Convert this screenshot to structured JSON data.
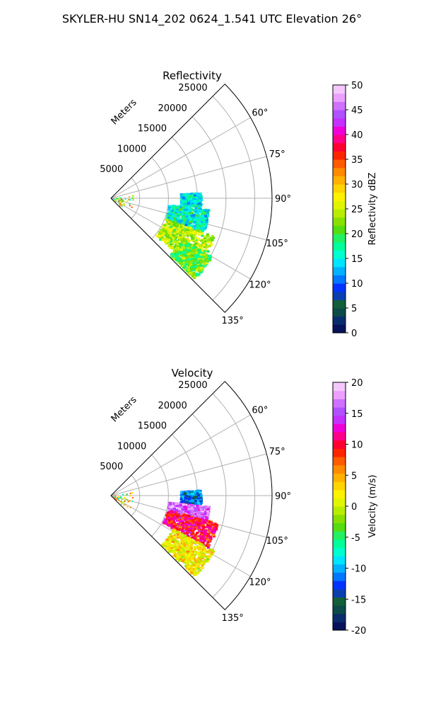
{
  "figure_title": "SKYLER-HU  SN14_202  0624_1.541 UTC Elevation 26°",
  "chart_data": [
    {
      "type": "polar-sector",
      "title": "Reflectivity",
      "radial_axis_label": "Meters",
      "radial_ticks": [
        "5000",
        "10000",
        "15000",
        "20000",
        "25000"
      ],
      "radial_tick_values": [
        5000,
        10000,
        15000,
        20000,
        25000
      ],
      "rlim": [
        0,
        28000
      ],
      "theta_range_deg": [
        45,
        135
      ],
      "angle_ticks": [
        "60°",
        "75°",
        "90°",
        "105°",
        "120°",
        "135°"
      ],
      "angle_tick_values": [
        60,
        75,
        90,
        105,
        120,
        135
      ],
      "grid": true,
      "colorbar": {
        "label": "Reflectivity dBZ",
        "ticks": [
          "0",
          "5",
          "10",
          "15",
          "20",
          "25",
          "30",
          "35",
          "40",
          "45",
          "50"
        ],
        "range": [
          0,
          50
        ],
        "colors": [
          "#06135a",
          "#0a2b6d",
          "#0d4a4a",
          "#125f3a",
          "#0b3fb0",
          "#0033ff",
          "#0077ff",
          "#00b2ff",
          "#00e5ff",
          "#00ffd0",
          "#00ff9a",
          "#22f060",
          "#55dd10",
          "#88e000",
          "#b9ed00",
          "#e2f500",
          "#fff200",
          "#ffd400",
          "#ffb000",
          "#ff8a00",
          "#ff5a00",
          "#ff2400",
          "#ff0030",
          "#ff0088",
          "#f000d8",
          "#c430ff",
          "#b050ff",
          "#d070ff",
          "#e9a0ff",
          "#f4c8ff"
        ]
      },
      "echo_regions": [
        {
          "theta": [
            86,
            95
          ],
          "range_m": [
            12000,
            15500
          ],
          "value": 15
        },
        {
          "theta": [
            96,
            110
          ],
          "range_m": [
            10000,
            17000
          ],
          "value": 16
        },
        {
          "theta": [
            110,
            130
          ],
          "range_m": [
            10000,
            19000
          ],
          "value": 24
        },
        {
          "theta": [
            120,
            134
          ],
          "range_m": [
            14000,
            20000
          ],
          "value": 21
        }
      ]
    },
    {
      "type": "polar-sector",
      "title": "Velocity",
      "radial_axis_label": "Meters",
      "radial_ticks": [
        "5000",
        "10000",
        "15000",
        "20000",
        "25000"
      ],
      "radial_tick_values": [
        5000,
        10000,
        15000,
        20000,
        25000
      ],
      "rlim": [
        0,
        28000
      ],
      "theta_range_deg": [
        45,
        135
      ],
      "angle_ticks": [
        "60°",
        "75°",
        "90°",
        "105°",
        "120°",
        "135°"
      ],
      "angle_tick_values": [
        60,
        75,
        90,
        105,
        120,
        135
      ],
      "grid": true,
      "colorbar": {
        "label": "Velocity (m/s)",
        "ticks": [
          "-20",
          "-15",
          "-10",
          "-5",
          "0",
          "5",
          "10",
          "15",
          "20"
        ],
        "range": [
          -20,
          20
        ],
        "colors": [
          "#06135a",
          "#0a2b6d",
          "#0d4a4a",
          "#125f3a",
          "#0b3fb0",
          "#0033ff",
          "#0077ff",
          "#00b2ff",
          "#00e5ff",
          "#00ffd0",
          "#00ff9a",
          "#22f060",
          "#55dd10",
          "#88e000",
          "#b9ed00",
          "#e2f500",
          "#fff200",
          "#ffd400",
          "#ffb000",
          "#ff8a00",
          "#ff5a00",
          "#ff2400",
          "#ff0030",
          "#ff0088",
          "#f000d8",
          "#c430ff",
          "#b050ff",
          "#d070ff",
          "#e9a0ff",
          "#f4c8ff"
        ]
      },
      "echo_regions": [
        {
          "theta": [
            86,
            95
          ],
          "range_m": [
            12000,
            15500
          ],
          "value": -12
        },
        {
          "theta": [
            96,
            104
          ],
          "range_m": [
            10000,
            17000
          ],
          "value": 16
        },
        {
          "theta": [
            104,
            118
          ],
          "range_m": [
            10000,
            19000
          ],
          "value": 10
        },
        {
          "theta": [
            118,
            134
          ],
          "range_m": [
            12000,
            20000
          ],
          "value": 2
        }
      ]
    }
  ]
}
